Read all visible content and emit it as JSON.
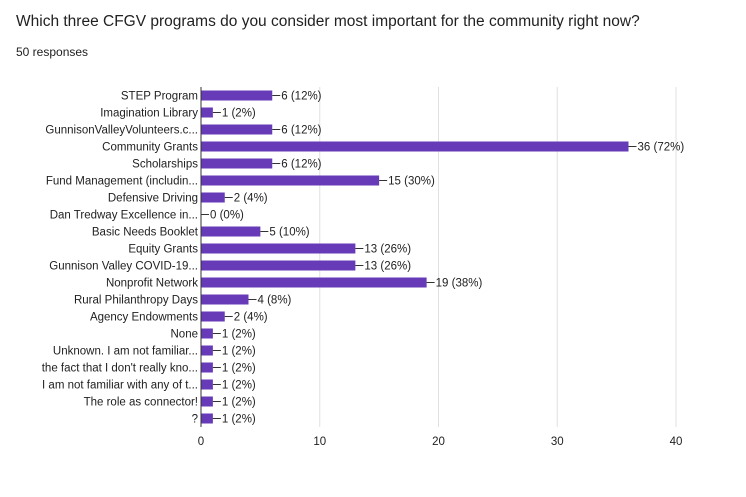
{
  "question": {
    "title": "Which three CFGV programs do you consider most important for the community right now?",
    "responses_label": "50 responses"
  },
  "chart_data": {
    "type": "bar",
    "orientation": "horizontal",
    "title": "Which three CFGV programs do you consider most important for the community right now?",
    "subtitle": "50 responses",
    "categories": [
      "STEP Program",
      "Imagination Library",
      "GunnisonValleyVolunteers.c...",
      "Community Grants",
      "Scholarships",
      "Fund Management (includin...",
      "Defensive Driving",
      "Dan Tredway Excellence in...",
      "Basic Needs Booklet",
      "Equity Grants",
      "Gunnison Valley COVID-19...",
      "Nonprofit Network",
      "Rural Philanthropy Days",
      "Agency Endowments",
      "None",
      "Unknown. I am not familiar...",
      "the fact that I don't really kno...",
      "I am not familiar with any of t...",
      "The role as connector!",
      "?"
    ],
    "values": [
      6,
      1,
      6,
      36,
      6,
      15,
      2,
      0,
      5,
      13,
      13,
      19,
      4,
      2,
      1,
      1,
      1,
      1,
      1,
      1
    ],
    "value_labels": [
      "6 (12%)",
      "1 (2%)",
      "6 (12%)",
      "36 (72%)",
      "6 (12%)",
      "15 (30%)",
      "2 (4%)",
      "0 (0%)",
      "5 (10%)",
      "13 (26%)",
      "13 (26%)",
      "19 (38%)",
      "4 (8%)",
      "2 (4%)",
      "1 (2%)",
      "1 (2%)",
      "1 (2%)",
      "1 (2%)",
      "1 (2%)",
      "1 (2%)"
    ],
    "xlim": [
      0,
      40
    ],
    "x_ticks": [
      0,
      10,
      20,
      30,
      40
    ],
    "bar_color": "#673ab7",
    "grid": true
  }
}
